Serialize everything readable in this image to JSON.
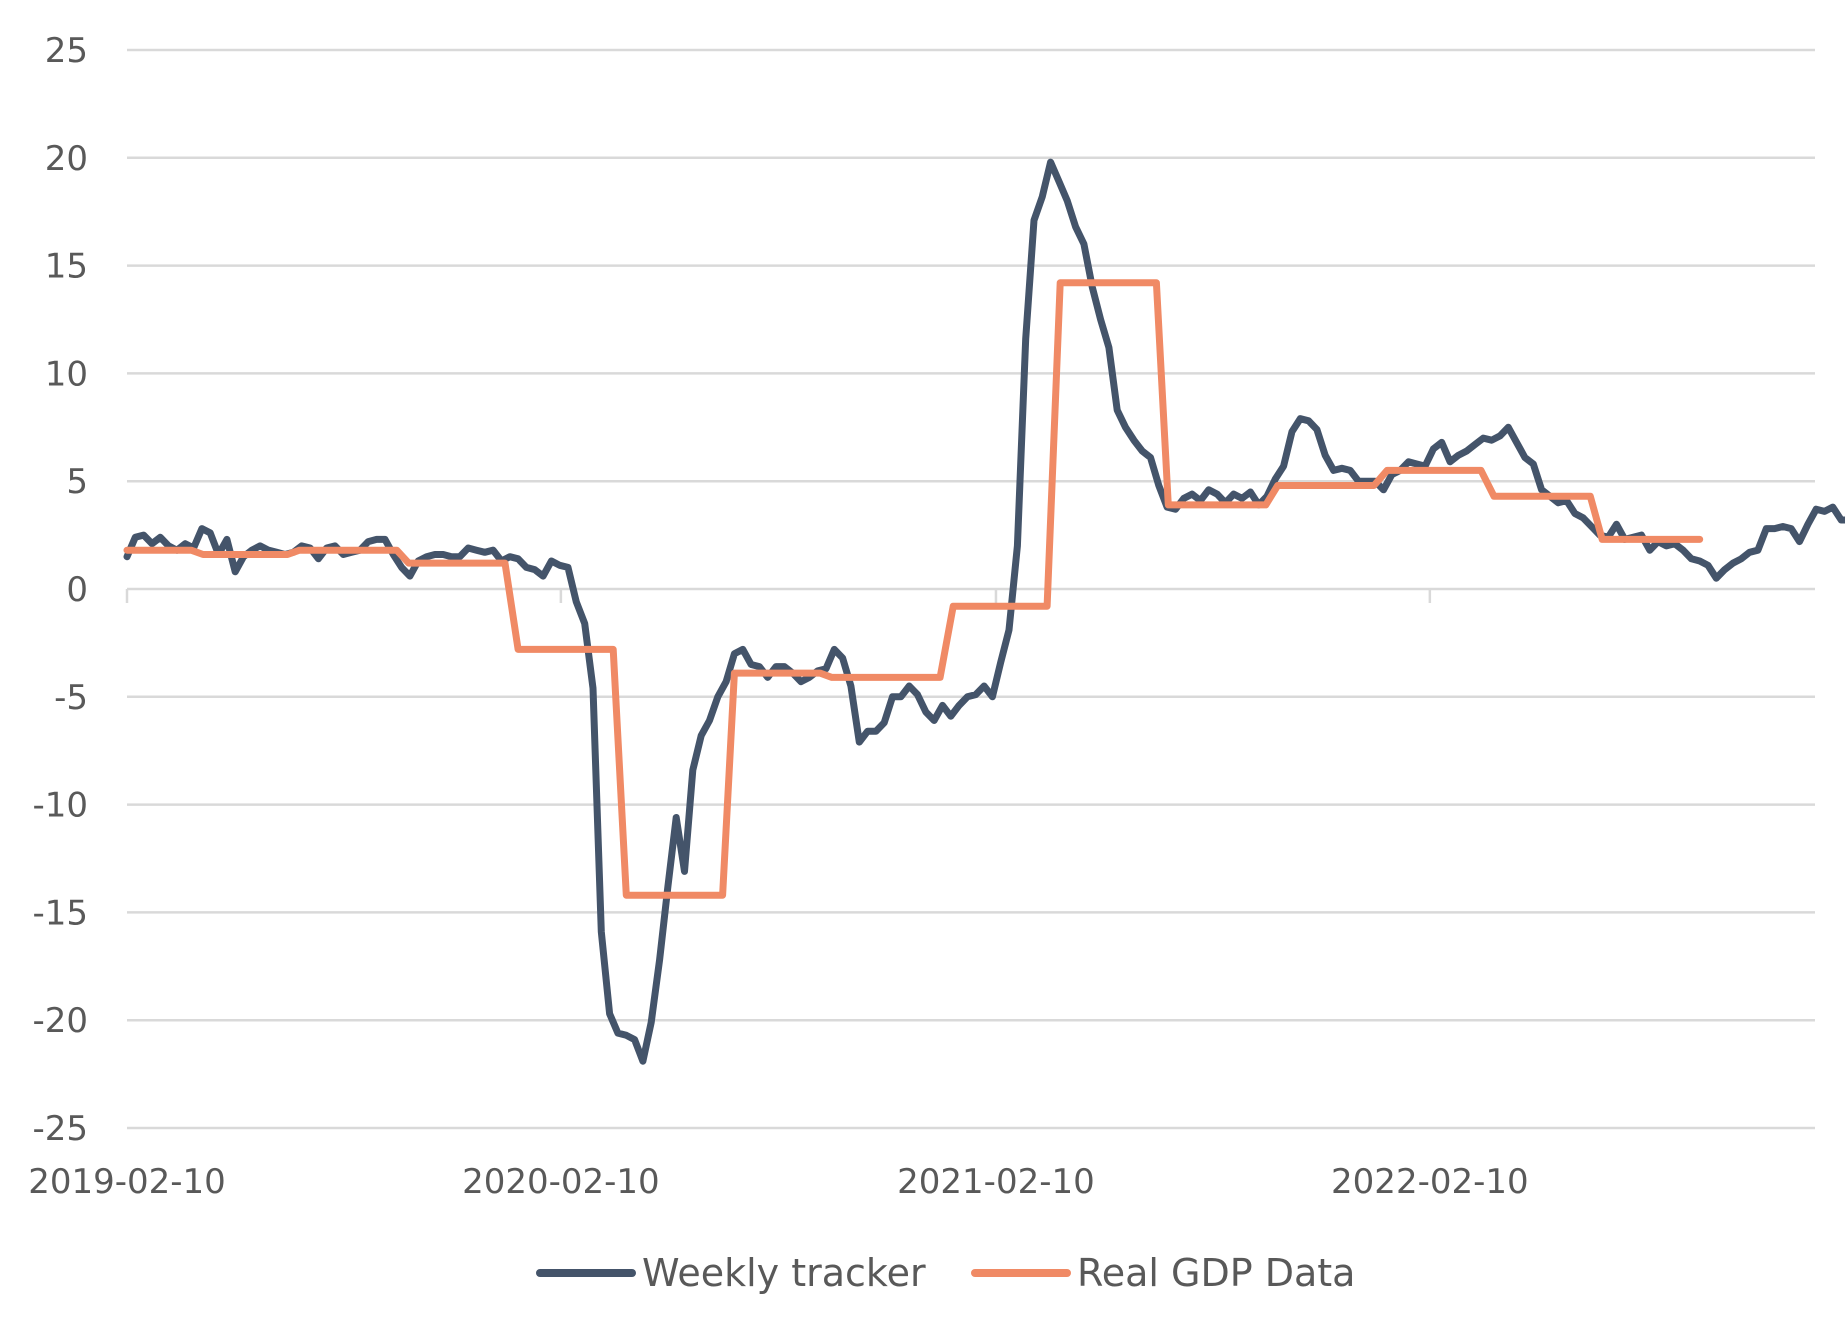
{
  "chart_data": {
    "type": "line",
    "title": "",
    "xlabel": "",
    "ylabel": "",
    "ylim": [
      -25,
      25
    ],
    "yticks": [
      25,
      20,
      15,
      10,
      5,
      0,
      -5,
      -10,
      -15,
      -20,
      -25
    ],
    "xlim": [
      "2019-02-10",
      "2022-12-31"
    ],
    "xticks": [
      "2019-02-10",
      "2020-02-10",
      "2021-02-10",
      "2022-02-10"
    ],
    "grid": true,
    "legend_position": "bottom",
    "series": [
      {
        "name": "Weekly tracker",
        "color": "#44546A",
        "points": [
          [
            "2019-02-10",
            1.5
          ],
          [
            "2019-02-17",
            2.4
          ],
          [
            "2019-02-24",
            2.5
          ],
          [
            "2019-03-03",
            2.1
          ],
          [
            "2019-03-10",
            2.4
          ],
          [
            "2019-03-17",
            2.0
          ],
          [
            "2019-03-24",
            1.8
          ],
          [
            "2019-03-31",
            2.1
          ],
          [
            "2019-04-07",
            1.9
          ],
          [
            "2019-04-14",
            2.8
          ],
          [
            "2019-04-21",
            2.6
          ],
          [
            "2019-04-28",
            1.6
          ],
          [
            "2019-05-05",
            2.3
          ],
          [
            "2019-05-12",
            0.8
          ],
          [
            "2019-05-19",
            1.5
          ],
          [
            "2019-05-26",
            1.8
          ],
          [
            "2019-06-02",
            2.0
          ],
          [
            "2019-06-09",
            1.8
          ],
          [
            "2019-06-16",
            1.7
          ],
          [
            "2019-06-23",
            1.6
          ],
          [
            "2019-06-30",
            1.7
          ],
          [
            "2019-07-07",
            2.0
          ],
          [
            "2019-07-14",
            1.9
          ],
          [
            "2019-07-21",
            1.4
          ],
          [
            "2019-07-28",
            1.9
          ],
          [
            "2019-08-04",
            2.0
          ],
          [
            "2019-08-11",
            1.6
          ],
          [
            "2019-08-18",
            1.7
          ],
          [
            "2019-08-25",
            1.8
          ],
          [
            "2019-09-01",
            2.2
          ],
          [
            "2019-09-08",
            2.3
          ],
          [
            "2019-09-15",
            2.3
          ],
          [
            "2019-09-22",
            1.6
          ],
          [
            "2019-09-29",
            1.0
          ],
          [
            "2019-10-06",
            0.6
          ],
          [
            "2019-10-13",
            1.3
          ],
          [
            "2019-10-20",
            1.5
          ],
          [
            "2019-10-27",
            1.6
          ],
          [
            "2019-11-03",
            1.6
          ],
          [
            "2019-11-10",
            1.5
          ],
          [
            "2019-11-17",
            1.5
          ],
          [
            "2019-11-24",
            1.9
          ],
          [
            "2019-12-01",
            1.8
          ],
          [
            "2019-12-08",
            1.7
          ],
          [
            "2019-12-15",
            1.8
          ],
          [
            "2019-12-22",
            1.3
          ],
          [
            "2019-12-29",
            1.5
          ],
          [
            "2020-01-05",
            1.4
          ],
          [
            "2020-01-12",
            1.0
          ],
          [
            "2020-01-19",
            0.9
          ],
          [
            "2020-01-26",
            0.6
          ],
          [
            "2020-02-02",
            1.3
          ],
          [
            "2020-02-09",
            1.1
          ],
          [
            "2020-02-16",
            1.0
          ],
          [
            "2020-02-23",
            -0.6
          ],
          [
            "2020-03-01",
            -1.6
          ],
          [
            "2020-03-08",
            -4.6
          ],
          [
            "2020-03-15",
            -15.9
          ],
          [
            "2020-03-22",
            -19.7
          ],
          [
            "2020-03-29",
            -20.6
          ],
          [
            "2020-04-05",
            -20.7
          ],
          [
            "2020-04-12",
            -20.9
          ],
          [
            "2020-04-19",
            -21.9
          ],
          [
            "2020-04-26",
            -20.1
          ],
          [
            "2020-05-03",
            -17.2
          ],
          [
            "2020-05-10",
            -13.8
          ],
          [
            "2020-05-17",
            -10.6
          ],
          [
            "2020-05-24",
            -13.1
          ],
          [
            "2020-05-31",
            -8.4
          ],
          [
            "2020-06-07",
            -6.8
          ],
          [
            "2020-06-14",
            -6.1
          ],
          [
            "2020-06-21",
            -5.0
          ],
          [
            "2020-06-28",
            -4.3
          ],
          [
            "2020-07-05",
            -3.0
          ],
          [
            "2020-07-12",
            -2.8
          ],
          [
            "2020-07-19",
            -3.5
          ],
          [
            "2020-07-26",
            -3.6
          ],
          [
            "2020-08-02",
            -4.1
          ],
          [
            "2020-08-09",
            -3.6
          ],
          [
            "2020-08-16",
            -3.6
          ],
          [
            "2020-08-23",
            -3.9
          ],
          [
            "2020-08-30",
            -4.3
          ],
          [
            "2020-09-06",
            -4.1
          ],
          [
            "2020-09-13",
            -3.8
          ],
          [
            "2020-09-20",
            -3.7
          ],
          [
            "2020-09-27",
            -2.8
          ],
          [
            "2020-10-04",
            -3.2
          ],
          [
            "2020-10-11",
            -4.5
          ],
          [
            "2020-10-18",
            -7.1
          ],
          [
            "2020-10-25",
            -6.6
          ],
          [
            "2020-11-01",
            -6.6
          ],
          [
            "2020-11-08",
            -6.2
          ],
          [
            "2020-11-15",
            -5.0
          ],
          [
            "2020-11-22",
            -5.0
          ],
          [
            "2020-11-29",
            -4.5
          ],
          [
            "2020-12-06",
            -4.9
          ],
          [
            "2020-12-13",
            -5.7
          ],
          [
            "2020-12-20",
            -6.1
          ],
          [
            "2020-12-27",
            -5.4
          ],
          [
            "2021-01-03",
            -5.9
          ],
          [
            "2021-01-10",
            -5.4
          ],
          [
            "2021-01-17",
            -5.0
          ],
          [
            "2021-01-24",
            -4.9
          ],
          [
            "2021-01-31",
            -4.5
          ],
          [
            "2021-02-07",
            -5.0
          ],
          [
            "2021-02-14",
            -3.4
          ],
          [
            "2021-02-21",
            -1.9
          ],
          [
            "2021-02-28",
            2.0
          ],
          [
            "2021-03-07",
            11.6
          ],
          [
            "2021-03-14",
            17.1
          ],
          [
            "2021-03-21",
            18.2
          ],
          [
            "2021-03-28",
            19.8
          ],
          [
            "2021-04-04",
            18.9
          ],
          [
            "2021-04-11",
            18.0
          ],
          [
            "2021-04-18",
            16.8
          ],
          [
            "2021-04-25",
            16.0
          ],
          [
            "2021-05-02",
            14.0
          ],
          [
            "2021-05-09",
            12.5
          ],
          [
            "2021-05-16",
            11.2
          ],
          [
            "2021-05-23",
            8.3
          ],
          [
            "2021-05-30",
            7.5
          ],
          [
            "2021-06-06",
            6.9
          ],
          [
            "2021-06-13",
            6.4
          ],
          [
            "2021-06-20",
            6.1
          ],
          [
            "2021-06-27",
            4.8
          ],
          [
            "2021-07-04",
            3.8
          ],
          [
            "2021-07-11",
            3.7
          ],
          [
            "2021-07-18",
            4.2
          ],
          [
            "2021-07-25",
            4.4
          ],
          [
            "2021-08-01",
            4.1
          ],
          [
            "2021-08-08",
            4.6
          ],
          [
            "2021-08-15",
            4.4
          ],
          [
            "2021-08-22",
            4.0
          ],
          [
            "2021-08-29",
            4.4
          ],
          [
            "2021-09-05",
            4.2
          ],
          [
            "2021-09-12",
            4.5
          ],
          [
            "2021-09-19",
            3.9
          ],
          [
            "2021-09-26",
            4.3
          ],
          [
            "2021-10-03",
            5.1
          ],
          [
            "2021-10-10",
            5.7
          ],
          [
            "2021-10-17",
            7.3
          ],
          [
            "2021-10-24",
            7.9
          ],
          [
            "2021-10-31",
            7.8
          ],
          [
            "2021-11-07",
            7.4
          ],
          [
            "2021-11-14",
            6.2
          ],
          [
            "2021-11-21",
            5.5
          ],
          [
            "2021-11-28",
            5.6
          ],
          [
            "2021-12-05",
            5.5
          ],
          [
            "2021-12-12",
            5.0
          ],
          [
            "2021-12-19",
            5.0
          ],
          [
            "2021-12-26",
            5.0
          ],
          [
            "2022-01-02",
            4.6
          ],
          [
            "2022-01-09",
            5.3
          ],
          [
            "2022-01-16",
            5.5
          ],
          [
            "2022-01-23",
            5.9
          ],
          [
            "2022-01-30",
            5.8
          ],
          [
            "2022-02-06",
            5.7
          ],
          [
            "2022-02-13",
            6.5
          ],
          [
            "2022-02-20",
            6.8
          ],
          [
            "2022-02-27",
            5.9
          ],
          [
            "2022-03-06",
            6.2
          ],
          [
            "2022-03-13",
            6.4
          ],
          [
            "2022-03-20",
            6.7
          ],
          [
            "2022-03-27",
            7.0
          ],
          [
            "2022-04-03",
            6.9
          ],
          [
            "2022-04-10",
            7.1
          ],
          [
            "2022-04-17",
            7.5
          ],
          [
            "2022-04-24",
            6.8
          ],
          [
            "2022-05-01",
            6.1
          ],
          [
            "2022-05-08",
            5.8
          ],
          [
            "2022-05-15",
            4.6
          ],
          [
            "2022-05-22",
            4.3
          ],
          [
            "2022-05-29",
            4.0
          ],
          [
            "2022-06-05",
            4.1
          ],
          [
            "2022-06-12",
            3.5
          ],
          [
            "2022-06-19",
            3.3
          ],
          [
            "2022-06-26",
            2.9
          ],
          [
            "2022-07-03",
            2.5
          ],
          [
            "2022-07-10",
            2.4
          ],
          [
            "2022-07-17",
            3.0
          ],
          [
            "2022-07-24",
            2.3
          ],
          [
            "2022-07-31",
            2.4
          ],
          [
            "2022-08-07",
            2.5
          ],
          [
            "2022-08-14",
            1.8
          ],
          [
            "2022-08-21",
            2.2
          ],
          [
            "2022-08-28",
            2.0
          ],
          [
            "2022-09-04",
            2.1
          ],
          [
            "2022-09-11",
            1.8
          ],
          [
            "2022-09-18",
            1.4
          ],
          [
            "2022-09-25",
            1.3
          ],
          [
            "2022-10-02",
            1.1
          ],
          [
            "2022-10-09",
            0.5
          ],
          [
            "2022-10-16",
            0.9
          ],
          [
            "2022-10-23",
            1.2
          ],
          [
            "2022-10-30",
            1.4
          ],
          [
            "2022-11-06",
            1.7
          ],
          [
            "2022-11-13",
            1.8
          ],
          [
            "2022-11-20",
            2.8
          ],
          [
            "2022-11-27",
            2.8
          ],
          [
            "2022-12-04",
            2.9
          ],
          [
            "2022-12-11",
            2.8
          ],
          [
            "2022-12-18",
            2.2
          ],
          [
            "2022-12-25",
            3.0
          ],
          [
            "2023-01-01",
            3.7
          ],
          [
            "2023-01-08",
            3.6
          ],
          [
            "2023-01-15",
            3.8
          ],
          [
            "2023-01-22",
            3.2
          ],
          [
            "2023-01-29",
            3.2
          ]
        ]
      },
      {
        "name": "Real GDP Data",
        "color": "#F08A65",
        "points": [
          [
            "2019-02-10",
            1.8
          ],
          [
            "2019-04-05",
            1.8
          ],
          [
            "2019-04-15",
            1.6
          ],
          [
            "2019-06-25",
            1.6
          ],
          [
            "2019-07-05",
            1.8
          ],
          [
            "2019-09-25",
            1.8
          ],
          [
            "2019-10-05",
            1.2
          ],
          [
            "2019-12-25",
            1.2
          ],
          [
            "2020-01-05",
            -2.8
          ],
          [
            "2020-03-25",
            -2.8
          ],
          [
            "2020-04-05",
            -14.2
          ],
          [
            "2020-06-25",
            -14.2
          ],
          [
            "2020-07-05",
            -3.9
          ],
          [
            "2020-09-15",
            -3.9
          ],
          [
            "2020-09-25",
            -4.1
          ],
          [
            "2020-12-25",
            -4.1
          ],
          [
            "2021-01-05",
            -0.8
          ],
          [
            "2021-03-25",
            -0.8
          ],
          [
            "2021-04-05",
            14.2
          ],
          [
            "2021-06-25",
            14.2
          ],
          [
            "2021-07-05",
            3.9
          ],
          [
            "2021-09-25",
            3.9
          ],
          [
            "2021-10-05",
            4.8
          ],
          [
            "2021-12-25",
            4.8
          ],
          [
            "2022-01-05",
            5.5
          ],
          [
            "2022-03-25",
            5.5
          ],
          [
            "2022-04-05",
            4.3
          ],
          [
            "2022-06-25",
            4.3
          ],
          [
            "2022-07-05",
            2.3
          ],
          [
            "2022-09-25",
            2.3
          ]
        ]
      }
    ]
  }
}
